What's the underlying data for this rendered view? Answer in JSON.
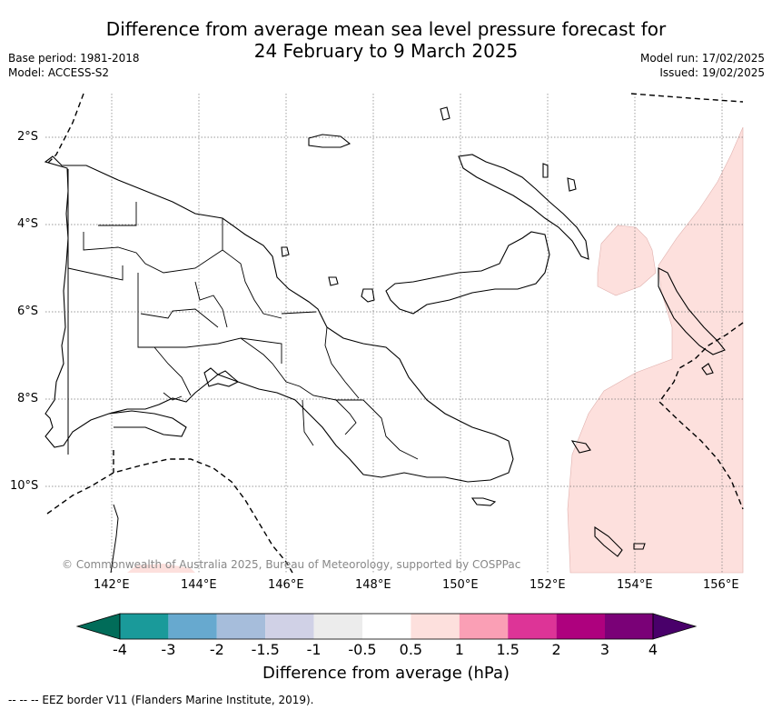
{
  "title": {
    "line1": "Difference from average mean sea level pressure forecast for",
    "line2": "24 February to 9 March 2025"
  },
  "meta_left": {
    "base_period": "Base period: 1981-2018",
    "model": "Model: ACCESS-S2"
  },
  "meta_right": {
    "model_run": "Model run: 17/02/2025",
    "issued": "Issued: 19/02/2025"
  },
  "map": {
    "lat_labels": [
      "2°S",
      "4°S",
      "6°S",
      "8°S",
      "10°S"
    ],
    "lon_labels": [
      "142°E",
      "144°E",
      "146°E",
      "148°E",
      "150°E",
      "152°E",
      "154°E",
      "156°E"
    ],
    "copyright": "© Commonwealth of Australia 2025, Bureau of Meteorology, supported by COSPPac",
    "anomaly_shading_color": "#fde0dd",
    "land_outline_color": "#000000"
  },
  "colorbar": {
    "title": "Difference from average (hPa)",
    "labels": [
      "-4",
      "-3",
      "-2",
      "-1.5",
      "-1",
      "-0.5",
      "0.5",
      "1",
      "1.5",
      "2",
      "3",
      "4"
    ],
    "colors": [
      "#1a9a9a",
      "#67a9cf",
      "#a6bddb",
      "#d0d1e6",
      "#ececec",
      "#ffffff",
      "#fde0dd",
      "#fa9fb5",
      "#dd3497",
      "#ae017e",
      "#7a0177"
    ],
    "under_color": "#016c59",
    "over_color": "#49006a"
  },
  "footer": "--  --  -- EEZ border V11 (Flanders Marine Institute, 2019)."
}
